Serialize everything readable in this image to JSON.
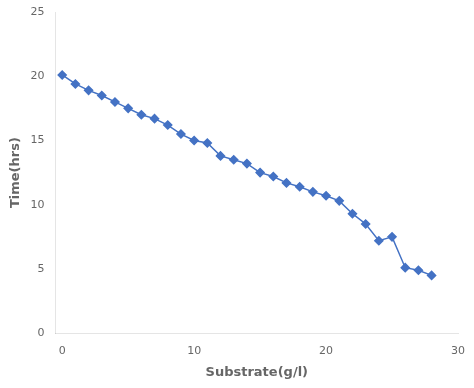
{
  "chart_data": {
    "type": "line",
    "x": [
      0,
      1,
      2,
      3,
      4,
      5,
      6,
      7,
      8,
      9,
      10,
      11,
      12,
      13,
      14,
      15,
      16,
      17,
      18,
      19,
      20,
      21,
      22,
      23,
      24,
      25,
      26,
      27,
      28
    ],
    "values": [
      20.1,
      19.4,
      18.9,
      18.5,
      18.0,
      17.5,
      17.0,
      16.7,
      16.2,
      15.5,
      15.0,
      14.8,
      13.8,
      13.5,
      13.2,
      12.5,
      12.2,
      11.7,
      11.4,
      11.0,
      10.7,
      10.3,
      9.3,
      8.5,
      7.2,
      7.5,
      5.1,
      4.9,
      4.5
    ],
    "color": "#4472C4",
    "marker": "diamond",
    "xlabel": "Substrate(g/l)",
    "ylabel": "Time(hrs)",
    "xlim": [
      -0.5,
      30
    ],
    "xticks": [
      0,
      10,
      20,
      30
    ],
    "ylim": [
      0,
      25
    ],
    "yticks": [
      0,
      5,
      10,
      15,
      20,
      25
    ],
    "grid": false
  }
}
